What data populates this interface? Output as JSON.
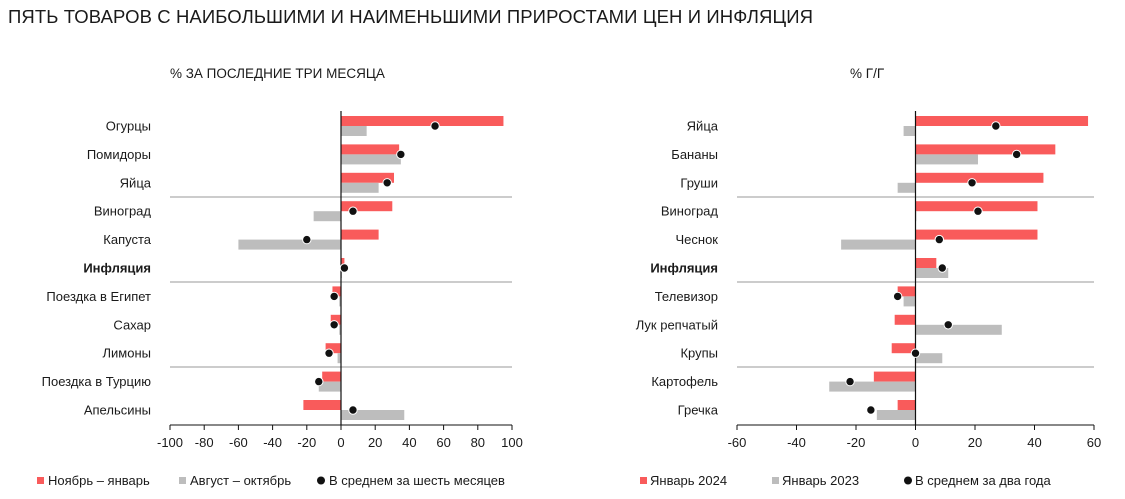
{
  "title": "ПЯТЬ ТОВАРОВ С НАИБОЛЬШИМИ И НАИМЕНЬШИМИ ПРИРОСТАМИ ЦЕН И ИНФЛЯЦИЯ",
  "colors": {
    "red": "#f95b5b",
    "gray": "#bdbdbd",
    "dot": "#111111",
    "grid": "#9a9a9a"
  },
  "chart_data": [
    {
      "type": "bar",
      "orientation": "horizontal",
      "title": "% ЗА ПОСЛЕДНИЕ ТРИ МЕСЯЦА",
      "categories": [
        "Огурцы",
        "Помидоры",
        "Яйца",
        "Виноград",
        "Капуста",
        "Инфляция",
        "Поездка в Египет",
        "Сахар",
        "Лимоны",
        "Поездка в Турцию",
        "Апельсины"
      ],
      "highlight_category": "Инфляция",
      "xlim": [
        -100,
        100
      ],
      "xticks": [
        -100,
        -80,
        -60,
        -40,
        -20,
        0,
        20,
        40,
        60,
        80,
        100
      ],
      "series": [
        {
          "name": "Ноябрь – январь",
          "kind": "bar",
          "color": "red",
          "values": [
            95,
            34,
            31,
            30,
            22,
            2,
            -5,
            -6,
            -9,
            -11,
            -22
          ]
        },
        {
          "name": "Август – октябрь",
          "kind": "bar",
          "color": "gray",
          "values": [
            15,
            35,
            22,
            -16,
            -60,
            0.5,
            -1,
            -1,
            -2,
            -13,
            37
          ]
        },
        {
          "name": "В среднем за шесть месяцев",
          "kind": "dot",
          "color": "dot",
          "values": [
            55,
            35,
            27,
            7,
            -20,
            2,
            -4,
            -4,
            -7,
            -13,
            7
          ]
        }
      ]
    },
    {
      "type": "bar",
      "orientation": "horizontal",
      "title": "% Г/Г",
      "categories": [
        "Яйца",
        "Бананы",
        "Груши",
        "Виноград",
        "Чеснок",
        "Инфляция",
        "Телевизор",
        "Лук репчатый",
        "Крупы",
        "Картофель",
        "Гречка"
      ],
      "highlight_category": "Инфляция",
      "xlim": [
        -60,
        60
      ],
      "xticks": [
        -60,
        -40,
        -20,
        0,
        20,
        40,
        60
      ],
      "series": [
        {
          "name": "Январь 2024",
          "kind": "bar",
          "color": "red",
          "values": [
            58,
            47,
            43,
            41,
            41,
            7,
            -6,
            -7,
            -8,
            -14,
            -6
          ]
        },
        {
          "name": "Январь 2023",
          "kind": "bar",
          "color": "gray",
          "values": [
            -4,
            21,
            -6,
            0,
            -25,
            11,
            -4,
            29,
            9,
            -29,
            -13
          ]
        },
        {
          "name": "В среднем за два года",
          "kind": "dot",
          "color": "dot",
          "values": [
            27,
            34,
            19,
            21,
            8,
            9,
            -6,
            11,
            0,
            -22,
            -15
          ]
        }
      ]
    }
  ]
}
